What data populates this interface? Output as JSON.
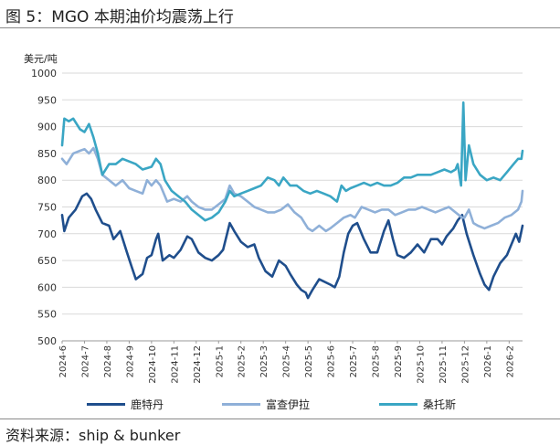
{
  "figure": {
    "title": "图 5：MGO 本期油价均震荡上行",
    "source": "资料来源：ship & bunker"
  },
  "chart_data": {
    "type": "line",
    "ylabel": "美元/吨",
    "ylim": [
      500,
      1000
    ],
    "yticks": [
      500,
      550,
      600,
      650,
      700,
      750,
      800,
      850,
      900,
      950,
      1000
    ],
    "grid": "horizontal",
    "legend_position": "bottom",
    "x_range": [
      0,
      20.6
    ],
    "x_labels": [
      "2024-6",
      "2024-7",
      "2024-8",
      "2024-9",
      "2024-10",
      "2024-11",
      "2024-12",
      "2025-1",
      "2025-2",
      "2025-3",
      "2025-4",
      "2025-5",
      "2025-6",
      "2025-7",
      "2025-8",
      "2025-9",
      "2025-10",
      "2025-11",
      "2025-12",
      "2026-1",
      "2026-2"
    ],
    "series": [
      {
        "name": "鹿特丹",
        "color": "#1f4e8c",
        "points": [
          [
            0,
            735
          ],
          [
            0.1,
            705
          ],
          [
            0.3,
            730
          ],
          [
            0.6,
            745
          ],
          [
            0.9,
            770
          ],
          [
            1.1,
            775
          ],
          [
            1.3,
            765
          ],
          [
            1.5,
            745
          ],
          [
            1.8,
            720
          ],
          [
            2.1,
            715
          ],
          [
            2.3,
            690
          ],
          [
            2.6,
            705
          ],
          [
            2.9,
            665
          ],
          [
            3.1,
            640
          ],
          [
            3.3,
            615
          ],
          [
            3.6,
            625
          ],
          [
            3.8,
            655
          ],
          [
            4.0,
            660
          ],
          [
            4.2,
            690
          ],
          [
            4.3,
            700
          ],
          [
            4.5,
            650
          ],
          [
            4.8,
            660
          ],
          [
            5.0,
            655
          ],
          [
            5.3,
            670
          ],
          [
            5.6,
            695
          ],
          [
            5.8,
            690
          ],
          [
            6.1,
            665
          ],
          [
            6.4,
            655
          ],
          [
            6.7,
            650
          ],
          [
            7.0,
            660
          ],
          [
            7.2,
            670
          ],
          [
            7.5,
            720
          ],
          [
            7.7,
            705
          ],
          [
            8.0,
            685
          ],
          [
            8.3,
            675
          ],
          [
            8.6,
            680
          ],
          [
            8.8,
            655
          ],
          [
            9.1,
            630
          ],
          [
            9.4,
            620
          ],
          [
            9.7,
            650
          ],
          [
            10.0,
            640
          ],
          [
            10.2,
            625
          ],
          [
            10.5,
            605
          ],
          [
            10.7,
            595
          ],
          [
            10.9,
            590
          ],
          [
            11.0,
            580
          ],
          [
            11.2,
            595
          ],
          [
            11.5,
            615
          ],
          [
            12.0,
            605
          ],
          [
            12.2,
            600
          ],
          [
            12.4,
            620
          ],
          [
            12.6,
            665
          ],
          [
            12.8,
            700
          ],
          [
            13.0,
            715
          ],
          [
            13.2,
            720
          ],
          [
            13.5,
            690
          ],
          [
            13.8,
            665
          ],
          [
            14.1,
            665
          ],
          [
            14.4,
            705
          ],
          [
            14.6,
            725
          ],
          [
            14.8,
            690
          ],
          [
            15.0,
            660
          ],
          [
            15.3,
            655
          ],
          [
            15.6,
            665
          ],
          [
            15.9,
            680
          ],
          [
            16.2,
            665
          ],
          [
            16.5,
            690
          ],
          [
            16.8,
            690
          ],
          [
            17.0,
            680
          ],
          [
            17.2,
            695
          ],
          [
            17.5,
            710
          ],
          [
            17.7,
            725
          ],
          [
            17.9,
            735
          ],
          [
            18.1,
            700
          ],
          [
            18.4,
            660
          ],
          [
            18.7,
            625
          ],
          [
            18.9,
            605
          ],
          [
            19.1,
            595
          ],
          [
            19.3,
            620
          ],
          [
            19.6,
            645
          ],
          [
            19.9,
            660
          ],
          [
            20.1,
            680
          ],
          [
            20.3,
            700
          ],
          [
            20.45,
            685
          ],
          [
            20.6,
            715
          ]
        ]
      },
      {
        "name": "富查伊拉",
        "color": "#8fb0d8",
        "points": [
          [
            0,
            840
          ],
          [
            0.2,
            830
          ],
          [
            0.5,
            850
          ],
          [
            0.8,
            855
          ],
          [
            1.0,
            858
          ],
          [
            1.2,
            850
          ],
          [
            1.4,
            860
          ],
          [
            1.6,
            840
          ],
          [
            1.8,
            810
          ],
          [
            2.1,
            800
          ],
          [
            2.4,
            790
          ],
          [
            2.7,
            800
          ],
          [
            3.0,
            785
          ],
          [
            3.3,
            780
          ],
          [
            3.6,
            775
          ],
          [
            3.8,
            800
          ],
          [
            4.0,
            790
          ],
          [
            4.2,
            800
          ],
          [
            4.4,
            790
          ],
          [
            4.7,
            760
          ],
          [
            5.0,
            765
          ],
          [
            5.3,
            760
          ],
          [
            5.6,
            770
          ],
          [
            5.8,
            760
          ],
          [
            6.1,
            750
          ],
          [
            6.4,
            745
          ],
          [
            6.7,
            745
          ],
          [
            7.0,
            755
          ],
          [
            7.3,
            765
          ],
          [
            7.5,
            790
          ],
          [
            7.7,
            775
          ],
          [
            8.0,
            770
          ],
          [
            8.3,
            760
          ],
          [
            8.6,
            750
          ],
          [
            8.9,
            745
          ],
          [
            9.2,
            740
          ],
          [
            9.5,
            740
          ],
          [
            9.8,
            745
          ],
          [
            10.1,
            755
          ],
          [
            10.4,
            740
          ],
          [
            10.7,
            730
          ],
          [
            11.0,
            710
          ],
          [
            11.2,
            705
          ],
          [
            11.5,
            715
          ],
          [
            11.8,
            705
          ],
          [
            12.0,
            710
          ],
          [
            12.3,
            720
          ],
          [
            12.6,
            730
          ],
          [
            12.9,
            735
          ],
          [
            13.1,
            730
          ],
          [
            13.4,
            750
          ],
          [
            13.7,
            745
          ],
          [
            14.0,
            740
          ],
          [
            14.3,
            745
          ],
          [
            14.6,
            745
          ],
          [
            14.9,
            735
          ],
          [
            15.2,
            740
          ],
          [
            15.5,
            745
          ],
          [
            15.8,
            745
          ],
          [
            16.1,
            750
          ],
          [
            16.4,
            745
          ],
          [
            16.7,
            740
          ],
          [
            17.0,
            745
          ],
          [
            17.3,
            750
          ],
          [
            17.6,
            740
          ],
          [
            17.9,
            730
          ],
          [
            18.0,
            730
          ],
          [
            18.2,
            745
          ],
          [
            18.4,
            720
          ],
          [
            18.6,
            715
          ],
          [
            18.9,
            710
          ],
          [
            19.2,
            715
          ],
          [
            19.5,
            720
          ],
          [
            19.8,
            730
          ],
          [
            20.1,
            735
          ],
          [
            20.4,
            745
          ],
          [
            20.55,
            760
          ],
          [
            20.6,
            780
          ]
        ]
      },
      {
        "name": "桑托斯",
        "color": "#3aa6c4",
        "points": [
          [
            0,
            865
          ],
          [
            0.1,
            915
          ],
          [
            0.3,
            910
          ],
          [
            0.5,
            915
          ],
          [
            0.8,
            895
          ],
          [
            1.0,
            890
          ],
          [
            1.2,
            905
          ],
          [
            1.4,
            880
          ],
          [
            1.6,
            850
          ],
          [
            1.8,
            810
          ],
          [
            2.1,
            830
          ],
          [
            2.4,
            830
          ],
          [
            2.7,
            840
          ],
          [
            3.0,
            835
          ],
          [
            3.3,
            830
          ],
          [
            3.6,
            820
          ],
          [
            4.0,
            825
          ],
          [
            4.2,
            840
          ],
          [
            4.4,
            830
          ],
          [
            4.6,
            800
          ],
          [
            4.9,
            780
          ],
          [
            5.2,
            770
          ],
          [
            5.5,
            760
          ],
          [
            5.8,
            745
          ],
          [
            6.1,
            735
          ],
          [
            6.4,
            725
          ],
          [
            6.7,
            730
          ],
          [
            7.0,
            740
          ],
          [
            7.3,
            760
          ],
          [
            7.5,
            780
          ],
          [
            7.7,
            770
          ],
          [
            8.0,
            775
          ],
          [
            8.3,
            780
          ],
          [
            8.6,
            785
          ],
          [
            8.9,
            790
          ],
          [
            9.2,
            805
          ],
          [
            9.5,
            800
          ],
          [
            9.7,
            790
          ],
          [
            9.9,
            805
          ],
          [
            10.2,
            790
          ],
          [
            10.5,
            790
          ],
          [
            10.8,
            780
          ],
          [
            11.1,
            775
          ],
          [
            11.4,
            780
          ],
          [
            11.7,
            775
          ],
          [
            12.0,
            770
          ],
          [
            12.3,
            760
          ],
          [
            12.5,
            790
          ],
          [
            12.7,
            780
          ],
          [
            12.9,
            785
          ],
          [
            13.2,
            790
          ],
          [
            13.5,
            795
          ],
          [
            13.8,
            790
          ],
          [
            14.1,
            795
          ],
          [
            14.4,
            790
          ],
          [
            14.7,
            790
          ],
          [
            15.0,
            795
          ],
          [
            15.3,
            805
          ],
          [
            15.6,
            805
          ],
          [
            15.9,
            810
          ],
          [
            16.2,
            810
          ],
          [
            16.5,
            810
          ],
          [
            16.8,
            815
          ],
          [
            17.1,
            820
          ],
          [
            17.4,
            815
          ],
          [
            17.6,
            820
          ],
          [
            17.7,
            830
          ],
          [
            17.85,
            790
          ],
          [
            17.95,
            945
          ],
          [
            18.05,
            800
          ],
          [
            18.2,
            865
          ],
          [
            18.4,
            830
          ],
          [
            18.7,
            810
          ],
          [
            19.0,
            800
          ],
          [
            19.3,
            805
          ],
          [
            19.6,
            800
          ],
          [
            19.9,
            815
          ],
          [
            20.2,
            830
          ],
          [
            20.4,
            840
          ],
          [
            20.55,
            840
          ],
          [
            20.6,
            855
          ]
        ]
      }
    ]
  }
}
